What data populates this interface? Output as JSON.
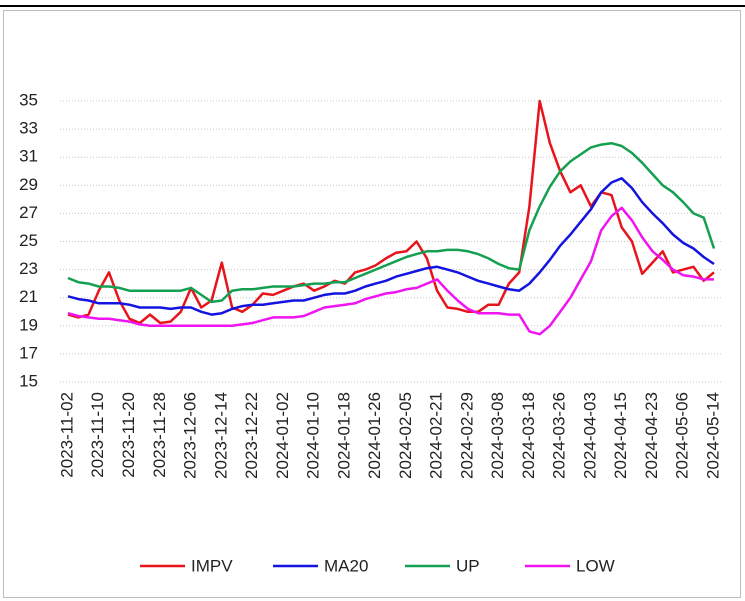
{
  "chart_data": {
    "type": "line",
    "categories": [
      "2023-11-02",
      null,
      null,
      "2023-11-10",
      null,
      null,
      "2023-11-20",
      null,
      null,
      "2023-11-28",
      null,
      null,
      "2023-12-06",
      null,
      null,
      "2023-12-14",
      null,
      null,
      "2023-12-22",
      null,
      null,
      "2024-01-02",
      null,
      null,
      "2024-01-10",
      null,
      null,
      "2024-01-18",
      null,
      null,
      "2024-01-26",
      null,
      null,
      "2024-02-05",
      null,
      null,
      "2024-02-21",
      null,
      null,
      "2024-02-29",
      null,
      null,
      "2024-03-08",
      null,
      null,
      "2024-03-18",
      null,
      null,
      "2024-03-26",
      null,
      null,
      "2024-04-03",
      null,
      null,
      "2024-04-15",
      null,
      null,
      "2024-04-23",
      null,
      null,
      "2024-05-06",
      null,
      null,
      "2024-05-14"
    ],
    "series": [
      {
        "name": "IMPV",
        "color": "#e8141c",
        "values": [
          19.8,
          19.6,
          19.8,
          21.5,
          22.8,
          20.8,
          19.5,
          19.2,
          19.8,
          19.2,
          19.3,
          20.0,
          21.7,
          20.3,
          20.8,
          23.5,
          20.3,
          20.0,
          20.5,
          21.3,
          21.2,
          21.5,
          21.8,
          22.0,
          21.5,
          21.8,
          22.2,
          22.0,
          22.8,
          23.0,
          23.3,
          23.8,
          24.2,
          24.3,
          25.0,
          23.8,
          21.5,
          20.3,
          20.2,
          20.0,
          20.0,
          20.5,
          20.5,
          22.0,
          22.8,
          27.5,
          35.0,
          32.0,
          30.0,
          28.5,
          29.0,
          27.5,
          28.5,
          28.3,
          26.0,
          25.0,
          22.7,
          23.5,
          24.3,
          22.8,
          23.0,
          23.2,
          22.2,
          22.8
        ]
      },
      {
        "name": "MA20",
        "color": "#1414e0",
        "values": [
          21.1,
          20.9,
          20.8,
          20.6,
          20.6,
          20.6,
          20.5,
          20.3,
          20.3,
          20.3,
          20.2,
          20.3,
          20.3,
          20.0,
          19.8,
          19.9,
          20.2,
          20.4,
          20.5,
          20.5,
          20.6,
          20.7,
          20.8,
          20.8,
          21.0,
          21.2,
          21.3,
          21.3,
          21.5,
          21.8,
          22.0,
          22.2,
          22.5,
          22.7,
          22.9,
          23.1,
          23.2,
          23.0,
          22.8,
          22.5,
          22.2,
          22.0,
          21.8,
          21.6,
          21.5,
          22.0,
          22.8,
          23.7,
          24.7,
          25.5,
          26.4,
          27.3,
          28.5,
          29.2,
          29.5,
          28.8,
          27.8,
          27.0,
          26.3,
          25.5,
          24.9,
          24.5,
          23.9,
          23.4
        ]
      },
      {
        "name": "UP",
        "color": "#14a050",
        "values": [
          22.4,
          22.1,
          22.0,
          21.8,
          21.8,
          21.7,
          21.5,
          21.5,
          21.5,
          21.5,
          21.5,
          21.5,
          21.7,
          21.2,
          20.7,
          20.8,
          21.5,
          21.6,
          21.6,
          21.7,
          21.8,
          21.8,
          21.8,
          21.9,
          22.0,
          22.0,
          22.1,
          22.1,
          22.4,
          22.7,
          23.0,
          23.3,
          23.6,
          23.9,
          24.1,
          24.3,
          24.3,
          24.4,
          24.4,
          24.3,
          24.1,
          23.8,
          23.4,
          23.1,
          23.0,
          25.8,
          27.5,
          28.9,
          30.0,
          30.7,
          31.2,
          31.7,
          31.9,
          32.0,
          31.8,
          31.3,
          30.6,
          29.8,
          29.0,
          28.5,
          27.8,
          27.0,
          26.7,
          24.5
        ]
      },
      {
        "name": "LOW",
        "color": "#f014f0",
        "values": [
          19.9,
          19.7,
          19.6,
          19.5,
          19.5,
          19.4,
          19.3,
          19.1,
          19.0,
          19.0,
          19.0,
          19.0,
          19.0,
          19.0,
          19.0,
          19.0,
          19.0,
          19.1,
          19.2,
          19.4,
          19.6,
          19.6,
          19.6,
          19.7,
          20.0,
          20.3,
          20.4,
          20.5,
          20.6,
          20.9,
          21.1,
          21.3,
          21.4,
          21.6,
          21.7,
          22.0,
          22.3,
          21.5,
          20.8,
          20.2,
          19.9,
          19.9,
          19.9,
          19.8,
          19.8,
          18.6,
          18.4,
          19.0,
          20.0,
          21.0,
          22.3,
          23.6,
          25.8,
          26.8,
          27.4,
          26.5,
          25.3,
          24.3,
          23.7,
          23.0,
          22.6,
          22.5,
          22.3,
          22.3
        ]
      }
    ],
    "ylim": [
      15,
      35
    ],
    "yticks": [
      15,
      17,
      19,
      21,
      23,
      25,
      27,
      29,
      31,
      33,
      35
    ],
    "grid": true,
    "legend": "bottom"
  }
}
